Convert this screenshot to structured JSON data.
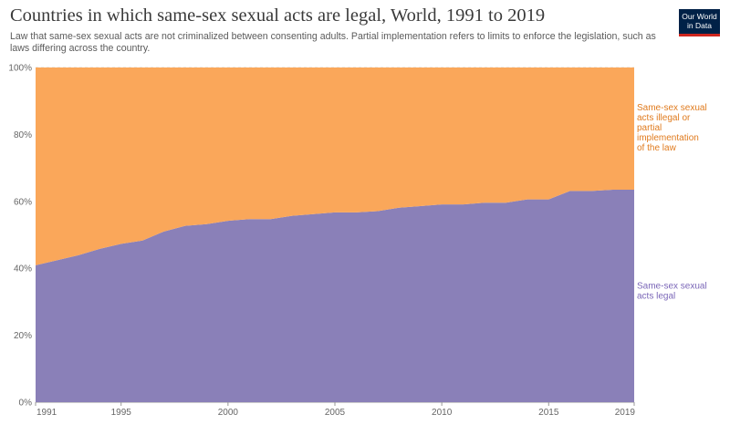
{
  "header": {
    "title": "Countries in which same-sex sexual acts are legal, World, 1991 to 2019",
    "subtitle": "Law that same-sex sexual acts are not criminalized between consenting adults. Partial implementation refers to limits to enforce the legislation, such as laws differing across the country."
  },
  "logo": {
    "line1": "Our World",
    "line2": "in Data",
    "bg_color": "#002147",
    "accent_color": "#ce261e"
  },
  "chart_data": {
    "type": "area",
    "stacked": true,
    "title": "Countries in which same-sex sexual acts are legal, World, 1991 to 2019",
    "x": [
      1991,
      1992,
      1993,
      1994,
      1995,
      1996,
      1997,
      1998,
      1999,
      2000,
      2001,
      2002,
      2003,
      2004,
      2005,
      2006,
      2007,
      2008,
      2009,
      2010,
      2011,
      2012,
      2013,
      2014,
      2015,
      2016,
      2017,
      2018,
      2019
    ],
    "series": [
      {
        "name": "Same-sex sexual acts legal",
        "color": "#8a80b8",
        "values": [
          40.9,
          42.4,
          43.9,
          45.8,
          47.3,
          48.3,
          51.0,
          52.7,
          53.2,
          54.2,
          54.7,
          54.7,
          55.7,
          56.2,
          56.7,
          56.7,
          57.1,
          58.1,
          58.6,
          59.1,
          59.1,
          59.6,
          59.6,
          60.6,
          60.6,
          63.1,
          63.1,
          63.5,
          63.5
        ]
      },
      {
        "name": "Same-sex sexual acts illegal or partial implementation of the law",
        "color": "#faa75a",
        "values": [
          59.1,
          57.6,
          56.1,
          54.2,
          52.7,
          51.7,
          49.0,
          47.3,
          46.8,
          45.8,
          45.3,
          45.3,
          44.3,
          43.8,
          43.3,
          43.3,
          42.9,
          41.9,
          41.4,
          40.9,
          40.9,
          40.4,
          40.4,
          39.4,
          39.4,
          36.9,
          36.9,
          36.5,
          36.5
        ]
      }
    ],
    "series_labels": [
      [
        "Same-sex sexual",
        "acts legal"
      ],
      [
        "Same-sex sexual",
        "acts illegal or",
        "partial",
        "implementation",
        "of the law"
      ]
    ],
    "label_colors": [
      "#7b67b8",
      "#e07b1e"
    ],
    "ylim": [
      0,
      100
    ],
    "y_ticks": [
      "0%",
      "20%",
      "40%",
      "60%",
      "80%",
      "100%"
    ],
    "y_tick_values": [
      0,
      20,
      40,
      60,
      80,
      100
    ],
    "x_ticks": [
      1991,
      1995,
      2000,
      2005,
      2010,
      2015,
      2019
    ],
    "grid": "horizontal",
    "legend": "right"
  }
}
